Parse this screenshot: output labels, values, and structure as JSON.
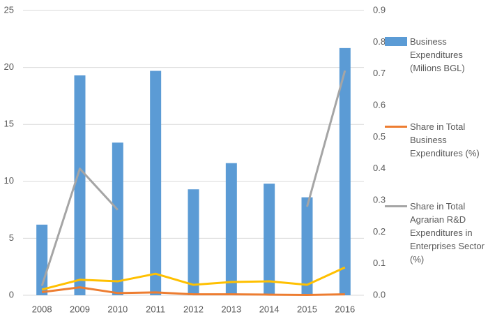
{
  "chart_data": {
    "type": "bar",
    "categories": [
      "2008",
      "2009",
      "2010",
      "2011",
      "2012",
      "2013",
      "2014",
      "2015",
      "2016"
    ],
    "series": [
      {
        "name": "Business Expenditures (Milions BGL)",
        "type": "bar",
        "color": "#5b9bd5",
        "values": [
          6.2,
          19.3,
          13.4,
          19.7,
          9.3,
          11.6,
          9.8,
          8.6,
          21.7
        ]
      },
      {
        "name": "Share in Total Business Expenditures (%)",
        "type": "line",
        "axis": "y2",
        "color": "#ed7d31",
        "values": [
          0.01,
          0.025,
          0.007,
          0.009,
          0.003,
          0.003,
          0.002,
          0.001,
          0.003
        ]
      },
      {
        "name": "Share in Total Agrarian R&D Expenditures in Enterprises Sector (%)",
        "type": "line",
        "axis": "y2",
        "color": "#a5a5a5",
        "values": [
          0.03,
          0.4,
          0.27,
          null,
          null,
          null,
          null,
          0.28,
          0.71
        ]
      },
      {
        "type": "line",
        "axis": "y2",
        "color": "#ffc000",
        "values": [
          0.018,
          0.049,
          0.044,
          0.068,
          0.033,
          0.042,
          0.044,
          0.033,
          0.088
        ]
      }
    ],
    "ylim": [
      0,
      25
    ],
    "yticks": [
      0,
      5,
      10,
      15,
      20,
      25
    ],
    "y2lim": [
      0,
      0.9
    ],
    "y2ticks": [
      {
        "value": 0,
        "label": "0.0"
      },
      0.1,
      0.2,
      0.3,
      0.4,
      0.5,
      0.6,
      0.7,
      0.8,
      0.9
    ],
    "grid": true,
    "legend": "right"
  }
}
